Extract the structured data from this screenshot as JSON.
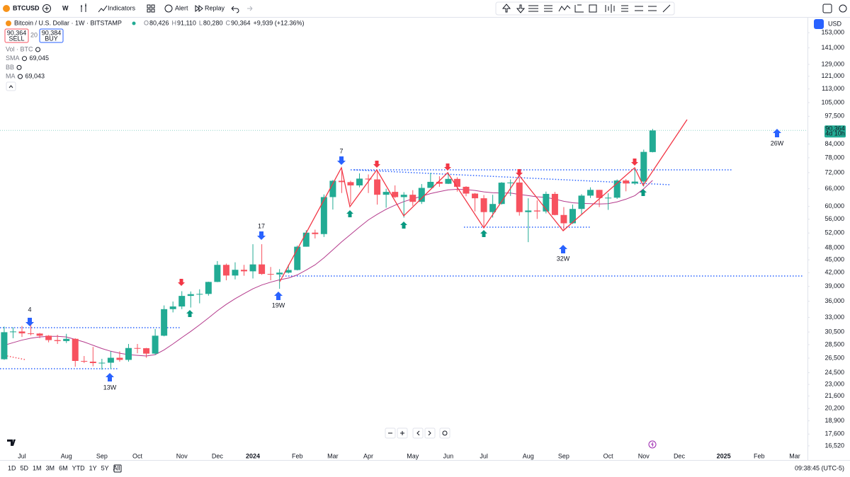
{
  "toolbar": {
    "symbol": "BTCUSD",
    "interval": "W",
    "indicators": "Indicators",
    "alert": "Alert",
    "replay": "Replay"
  },
  "legend": {
    "title": "Bitcoin / U.S. Dollar · 1W · BITSTAMP",
    "ohlc": [
      {
        "label": "O",
        "value": "80,426"
      },
      {
        "label": "H",
        "value": "91,110"
      },
      {
        "label": "L",
        "value": "80,280"
      },
      {
        "label": "C",
        "value": "90,364"
      }
    ],
    "change": "+9,939 (+12.36%)",
    "sell_price": "90,364",
    "sell": "SELL",
    "spread": "20",
    "buy_price": "90,384",
    "buy": "BUY",
    "indicators": [
      {
        "name": "Vol · BTC"
      },
      {
        "name": "SMA",
        "value": "69,045"
      },
      {
        "name": "BB"
      },
      {
        "name": "MA",
        "value": "69,043"
      }
    ]
  },
  "chart_data": {
    "type": "candlestick",
    "log": true,
    "grid": false,
    "currency": "USD",
    "colors": {
      "up": "#22ab94",
      "down": "#f7525f",
      "sma": "#b43a8c"
    },
    "categories": [
      null,
      null,
      "Jul",
      null,
      null,
      null,
      null,
      "Aug",
      null,
      null,
      null,
      "Sep",
      null,
      null,
      null,
      "Oct",
      null,
      null,
      null,
      null,
      "Nov",
      null,
      null,
      null,
      "Dec",
      null,
      null,
      null,
      "2024",
      null,
      null,
      null,
      null,
      "Feb",
      null,
      null,
      null,
      "Mar",
      null,
      null,
      null,
      "Apr",
      null,
      null,
      null,
      null,
      "May",
      null,
      null,
      null,
      "Jun",
      null,
      null,
      null,
      "Jul",
      null,
      null,
      null,
      null,
      "Aug",
      null,
      null,
      null,
      "Sep",
      null,
      null,
      null,
      null,
      "Oct",
      null,
      null,
      null,
      "Nov",
      null,
      null,
      null,
      "Dec",
      null,
      null,
      null,
      null,
      "2025",
      null,
      null,
      null,
      "Feb",
      null,
      null,
      null,
      "Mar",
      null
    ],
    "open": [
      26340,
      30470,
      30590,
      30280,
      30250,
      29900,
      29200,
      29050,
      29400,
      26100,
      26000,
      25800,
      25850,
      26550,
      26250,
      27980,
      27950,
      27150,
      29900,
      34500,
      35000,
      37050,
      37400,
      37450,
      39950,
      43800,
      41350,
      42650,
      42300,
      43900,
      41700,
      41600,
      42000,
      42600,
      48300,
      52100,
      51700,
      63100,
      68900,
      68400,
      67200,
      69700,
      69400,
      63900,
      64900,
      63100,
      63900,
      61500,
      66300,
      68500,
      67800,
      69600,
      66700,
      64300,
      62700,
      58200,
      60800,
      68200,
      68250,
      58200,
      58700,
      58400,
      64200,
      57300,
      54800,
      59200,
      63600,
      65600,
      62800,
      62900,
      69000,
      67900,
      68600,
      80426,
      null,
      null,
      null,
      null,
      null,
      null,
      null,
      null,
      null,
      null,
      null,
      null,
      null,
      null,
      null,
      null,
      null
    ],
    "high": [
      31400,
      31280,
      31500,
      31800,
      30350,
      30000,
      30050,
      30200,
      29500,
      26800,
      28150,
      26400,
      27500,
      27480,
      28600,
      28600,
      28000,
      31000,
      35200,
      35950,
      38000,
      37950,
      38400,
      40000,
      44700,
      44100,
      44400,
      43800,
      48950,
      48950,
      43300,
      42800,
      43850,
      48600,
      52800,
      52950,
      64000,
      69200,
      73800,
      68900,
      71700,
      71300,
      72800,
      66000,
      67200,
      64800,
      65500,
      67700,
      71900,
      70600,
      72000,
      70200,
      66900,
      64500,
      63800,
      63900,
      68400,
      69400,
      70000,
      62700,
      62000,
      65000,
      64900,
      59800,
      60600,
      64100,
      66500,
      65600,
      64400,
      69400,
      69500,
      73600,
      81500,
      91110,
      null,
      null,
      null,
      null,
      null,
      null,
      null,
      null,
      null,
      null,
      null,
      null,
      null,
      null,
      null,
      null,
      null
    ],
    "low": [
      26250,
      29500,
      29700,
      29950,
      29500,
      28850,
      28600,
      28750,
      25300,
      25800,
      25350,
      24900,
      25000,
      26000,
      26000,
      27200,
      26550,
      26950,
      29800,
      33900,
      34500,
      34800,
      35600,
      37100,
      39900,
      40300,
      40500,
      41300,
      40700,
      41500,
      40300,
      38500,
      41800,
      42500,
      48300,
      50500,
      50900,
      59000,
      64500,
      60800,
      66500,
      64500,
      60600,
      59600,
      62800,
      56500,
      60200,
      60800,
      66300,
      66700,
      67700,
      65000,
      63400,
      58400,
      53500,
      56500,
      60600,
      63500,
      57100,
      49500,
      56100,
      57800,
      57200,
      52600,
      54600,
      57500,
      62800,
      59800,
      58900,
      62500,
      65100,
      67400,
      66800,
      80280,
      null,
      null,
      null,
      null,
      null,
      null,
      null,
      null,
      null,
      null,
      null,
      null,
      null,
      null,
      null,
      null,
      null
    ],
    "close": [
      30470,
      30590,
      30280,
      30250,
      29900,
      29200,
      29050,
      29400,
      26100,
      26000,
      25800,
      25850,
      26550,
      26250,
      27980,
      27950,
      27150,
      29900,
      34500,
      35000,
      37050,
      37400,
      37450,
      39950,
      43800,
      41350,
      42650,
      42300,
      43900,
      41700,
      41600,
      42000,
      42600,
      48300,
      52100,
      51700,
      63100,
      68900,
      68400,
      67200,
      69700,
      69400,
      63900,
      64900,
      63100,
      63900,
      61500,
      66300,
      68500,
      67800,
      69600,
      66700,
      64300,
      62700,
      58200,
      60800,
      68200,
      68250,
      58200,
      58700,
      58400,
      64200,
      57300,
      54800,
      59200,
      63600,
      65600,
      62800,
      62900,
      69000,
      67900,
      68600,
      80500,
      90364,
      null,
      null,
      null,
      null,
      null,
      null,
      null,
      null,
      null,
      null,
      null,
      null,
      null,
      null,
      null,
      null,
      null
    ],
    "sma_values": [
      28400,
      28800,
      29200,
      29500,
      29700,
      29800,
      29800,
      29700,
      29300,
      28900,
      28400,
      27900,
      27500,
      27200,
      27000,
      26900,
      26800,
      27000,
      27700,
      28600,
      29600,
      30600,
      31700,
      32900,
      34200,
      35400,
      36500,
      37500,
      38500,
      39300,
      39900,
      40400,
      40800,
      41500,
      42600,
      43800,
      45500,
      47500,
      49600,
      51600,
      53700,
      55800,
      57500,
      59100,
      60400,
      61600,
      62500,
      63400,
      64300,
      65000,
      65600,
      65800,
      65700,
      65400,
      64900,
      64600,
      64500,
      64500,
      64000,
      63600,
      63200,
      63000,
      62400,
      61700,
      61200,
      61000,
      60900,
      60800,
      60900,
      61500,
      62400,
      63600,
      66000,
      69045,
      null,
      null,
      null,
      null,
      null,
      null,
      null,
      null,
      null,
      null,
      null,
      null,
      null,
      null,
      null,
      null,
      null
    ],
    "ylim": [
      16020,
      164000
    ],
    "yticks": [
      {
        "value": 153000,
        "label": "153,000"
      },
      {
        "value": 141000,
        "label": "141,000"
      },
      {
        "value": 129000,
        "label": "129,000"
      },
      {
        "value": 121000,
        "label": "121,000"
      },
      {
        "value": 113000,
        "label": "113,000"
      },
      {
        "value": 105000,
        "label": "105,000"
      },
      {
        "value": 97500,
        "label": "97,500"
      },
      {
        "value": 84000,
        "label": "84,000"
      },
      {
        "value": 78000,
        "label": "78,000"
      },
      {
        "value": 72000,
        "label": "72,000"
      },
      {
        "value": 66000,
        "label": "66,000"
      },
      {
        "value": 60000,
        "label": "60,000"
      },
      {
        "value": 56000,
        "label": "56,000"
      },
      {
        "value": 52000,
        "label": "52,000"
      },
      {
        "value": 48000,
        "label": "48,000"
      },
      {
        "value": 45000,
        "label": "45,000"
      },
      {
        "value": 42000,
        "label": "42,000"
      },
      {
        "value": 39000,
        "label": "39,000"
      },
      {
        "value": 36000,
        "label": "36,000"
      },
      {
        "value": 33000,
        "label": "33,000"
      },
      {
        "value": 30500,
        "label": "30,500"
      },
      {
        "value": 28500,
        "label": "28,500"
      },
      {
        "value": 26500,
        "label": "26,500"
      },
      {
        "value": 24500,
        "label": "24,500"
      },
      {
        "value": 23000,
        "label": "23,000"
      },
      {
        "value": 21600,
        "label": "21,600"
      },
      {
        "value": 20200,
        "label": "20,200"
      },
      {
        "value": 18900,
        "label": "18,900"
      },
      {
        "value": 17600,
        "label": "17,600"
      },
      {
        "value": 16520,
        "label": "16,520"
      }
    ],
    "last_price_label": "90,364",
    "countdown": "4d 10h",
    "annotations": [
      {
        "text": "4"
      },
      {
        "text": "13W"
      },
      {
        "text": "17"
      },
      {
        "text": "19W"
      },
      {
        "text": "7"
      },
      {
        "text": "32W"
      },
      {
        "text": "26W"
      }
    ]
  },
  "footer": {
    "ranges": [
      "1D",
      "5D",
      "1M",
      "3M",
      "6M",
      "YTD",
      "1Y",
      "5Y",
      "All"
    ],
    "clock": "09:38:45 (UTC-5)"
  }
}
